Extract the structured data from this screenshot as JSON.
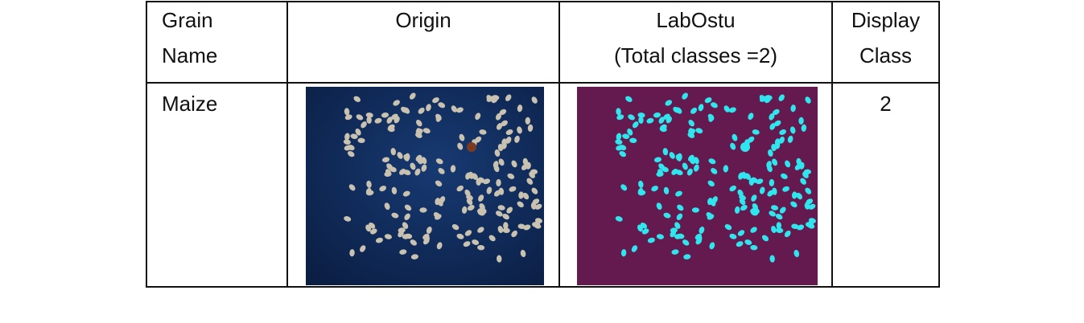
{
  "table": {
    "headers": {
      "grain_name": [
        "Grain",
        "Name"
      ],
      "origin": [
        "Origin"
      ],
      "labostu": [
        "LabOstu",
        "(Total classes =2)"
      ],
      "display_class": [
        "Display",
        "Class"
      ]
    },
    "rows": [
      {
        "grain_name": "Maize",
        "display_class": "2"
      }
    ]
  },
  "images": {
    "origin": {
      "description_icon": "maize-kernels-photo",
      "background": "#0f2a57",
      "kernel_color": "#c9c2b0",
      "coin_color": "#7a3b22"
    },
    "labostu": {
      "description_icon": "segmentation-mask",
      "background": "#651a4f",
      "kernel_color": "#2fe6ee"
    }
  }
}
